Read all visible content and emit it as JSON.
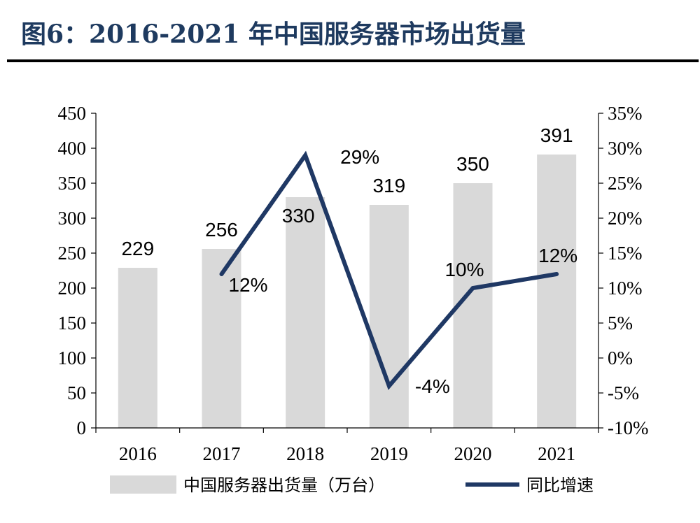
{
  "title": "图6：2016-2021 年中国服务器市场出货量",
  "chart_data": {
    "type": "bar",
    "categories": [
      "2016",
      "2017",
      "2018",
      "2019",
      "2020",
      "2021"
    ],
    "series": [
      {
        "name": "中国服务器出货量（万台）",
        "type": "bar",
        "axis": "left",
        "values": [
          229,
          256,
          330,
          319,
          350,
          391
        ],
        "labels": [
          "229",
          "256",
          "330",
          "319",
          "350",
          "391"
        ],
        "color": "#d9d9d9"
      },
      {
        "name": "同比增速",
        "type": "line",
        "axis": "right",
        "values": [
          null,
          12,
          29,
          -4,
          10,
          12
        ],
        "labels": [
          null,
          "12%",
          "29%",
          "-4%",
          "10%",
          "12%"
        ],
        "color": "#1f3864"
      }
    ],
    "y_left": {
      "ylim": [
        0,
        450
      ],
      "ticks": [
        "0",
        "50",
        "100",
        "150",
        "200",
        "250",
        "300",
        "350",
        "400",
        "450"
      ]
    },
    "y_right": {
      "ylim": [
        -10,
        35
      ],
      "ticks": [
        "-10%",
        "-5%",
        "0%",
        "5%",
        "10%",
        "15%",
        "20%",
        "25%",
        "30%",
        "35%"
      ]
    },
    "grid": false,
    "legend_position": "bottom"
  }
}
